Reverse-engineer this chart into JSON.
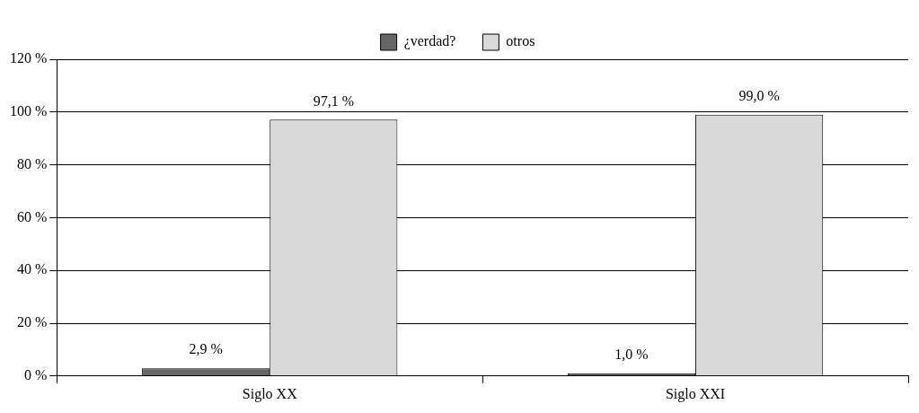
{
  "chart_data": {
    "type": "bar",
    "categories": [
      "Siglo XX",
      "Siglo XXI"
    ],
    "series": [
      {
        "name": "¿verdad?",
        "color": "#666666",
        "values": [
          2.9,
          1.0
        ],
        "value_labels": [
          "2,9 %",
          "1,0 %"
        ]
      },
      {
        "name": "otros",
        "color": "#d9d9d9",
        "values": [
          97.1,
          99.0
        ],
        "value_labels": [
          "97,1 %",
          "99,0 %"
        ]
      }
    ],
    "ylim": [
      0,
      120
    ],
    "yticks": [
      {
        "value": 0,
        "label": "0 %"
      },
      {
        "value": 20,
        "label": "20 %"
      },
      {
        "value": 40,
        "label": "40 %"
      },
      {
        "value": 60,
        "label": "60 %"
      },
      {
        "value": 80,
        "label": "80 %"
      },
      {
        "value": 100,
        "label": "100 %"
      },
      {
        "value": 120,
        "label": "120 %"
      }
    ],
    "grid": "y",
    "legend": "top"
  }
}
